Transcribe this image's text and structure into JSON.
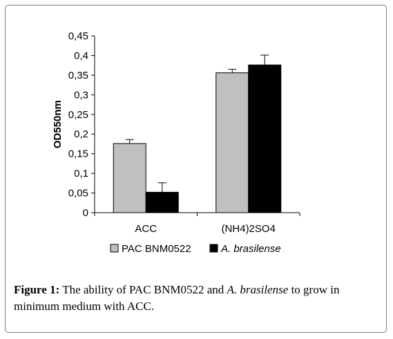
{
  "chart_data": {
    "type": "bar",
    "ylabel": "OD550nm",
    "xlabel": "",
    "ylim": [
      0,
      0.45
    ],
    "yticks": [
      "0",
      "0,05",
      "0,1",
      "0,15",
      "0,2",
      "0,25",
      "0,3",
      "0,35",
      "0,4",
      "0,45"
    ],
    "categories": [
      "ACC",
      "(NH4)2SO4"
    ],
    "series": [
      {
        "name": "PAC BNM0522",
        "color": "#c0c0c0",
        "values": [
          0.176,
          0.356
        ],
        "errors": [
          0.01,
          0.009
        ]
      },
      {
        "name": "A. brasilense",
        "color": "#000000",
        "values": [
          0.052,
          0.376
        ],
        "errors": [
          0.024,
          0.025
        ]
      }
    ],
    "legend_position": "bottom",
    "grid": false
  },
  "caption": {
    "label": "Figure 1:",
    "text_before": " The ability of PAC BNM0522 and ",
    "species": "A. brasilense",
    "text_after": " to grow in minimum medium with ACC."
  }
}
